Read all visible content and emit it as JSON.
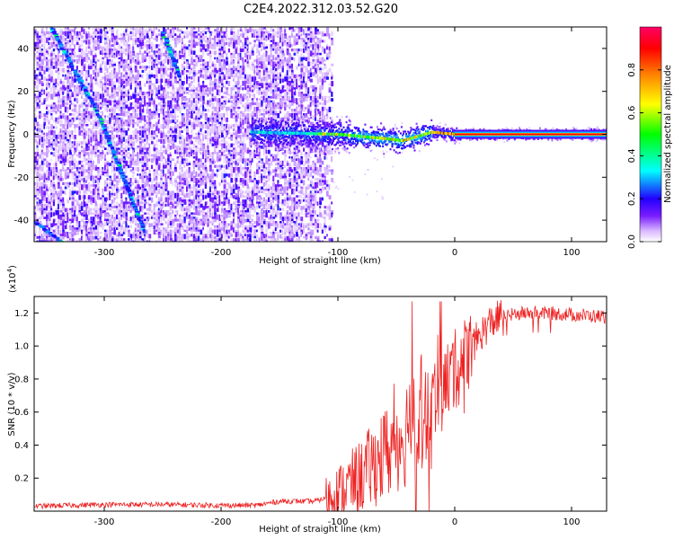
{
  "chart_data": [
    {
      "type": "heatmap",
      "title": "C2E4.2022.312.03.52.G20",
      "xlabel": "Height of straight line (km)",
      "ylabel": "Frequency (Hz)",
      "xlim": [
        -360,
        130
      ],
      "ylim": [
        -50,
        50
      ],
      "xticks": [
        -300,
        -200,
        -100,
        0,
        100
      ],
      "yticks": [
        -40,
        -20,
        0,
        20,
        40
      ],
      "colorbar": {
        "label": "Normalized spectral amplitude",
        "range": [
          0.0,
          1.0
        ],
        "ticks": [
          0.0,
          0.2,
          0.4,
          0.6,
          0.8
        ],
        "colors": [
          "#ffffff",
          "#d9b8ff",
          "#7a1cff",
          "#2200ff",
          "#00ffff",
          "#00ff00",
          "#ffff00",
          "#ff8000",
          "#ff0000",
          "#ff0066"
        ]
      },
      "features": [
        {
          "name": "noise region",
          "x_range": [
            -360,
            -105
          ],
          "freq_range": [
            -50,
            50
          ]
        },
        {
          "name": "diagonal trace 1",
          "x": [
            -345,
            -305,
            -265
          ],
          "freq": [
            50,
            10,
            -45
          ]
        },
        {
          "name": "diagonal trace 2",
          "x": [
            -360,
            -335
          ],
          "freq": [
            -40,
            -50
          ]
        },
        {
          "name": "diagonal trace 3",
          "x": [
            -250,
            -235
          ],
          "freq": [
            48,
            27
          ]
        },
        {
          "name": "carrier line",
          "x": [
            -175,
            -100,
            -60,
            -45,
            -20,
            0,
            50,
            130
          ],
          "freq": [
            1,
            0,
            -2,
            -3,
            1,
            0,
            0,
            0
          ]
        }
      ]
    },
    {
      "type": "line",
      "title": "",
      "xlabel": "Height of straight line (km)",
      "ylabel": "SNR (10 * v/v)",
      "multiplier_label": "(x10",
      "multiplier_exp": "4",
      "multiplier_close": ")",
      "xlim": [
        -360,
        130
      ],
      "ylim": [
        0,
        13000
      ],
      "xticks": [
        -300,
        -200,
        -100,
        0,
        100
      ],
      "yticks": [
        2000,
        4000,
        6000,
        8000,
        10000,
        12000
      ],
      "ytick_labels": [
        "0.2",
        "0.4",
        "0.6",
        "0.8",
        "1.0",
        "1.2"
      ],
      "series": [
        {
          "name": "SNR",
          "color": "#ee2222",
          "x": [
            -360,
            -300,
            -250,
            -200,
            -170,
            -150,
            -120,
            -110,
            -100,
            -90,
            -80,
            -70,
            -60,
            -50,
            -40,
            -30,
            -25,
            -20,
            -15,
            -10,
            0,
            10,
            20,
            30,
            40,
            60,
            80,
            100,
            120,
            130
          ],
          "y": [
            300,
            400,
            400,
            350,
            350,
            600,
            600,
            800,
            1100,
            1600,
            2100,
            2800,
            3400,
            4200,
            5000,
            6000,
            6700,
            7000,
            7300,
            7500,
            8500,
            9500,
            10500,
            11400,
            11800,
            12000,
            12000,
            11900,
            11800,
            11800
          ]
        }
      ]
    }
  ]
}
